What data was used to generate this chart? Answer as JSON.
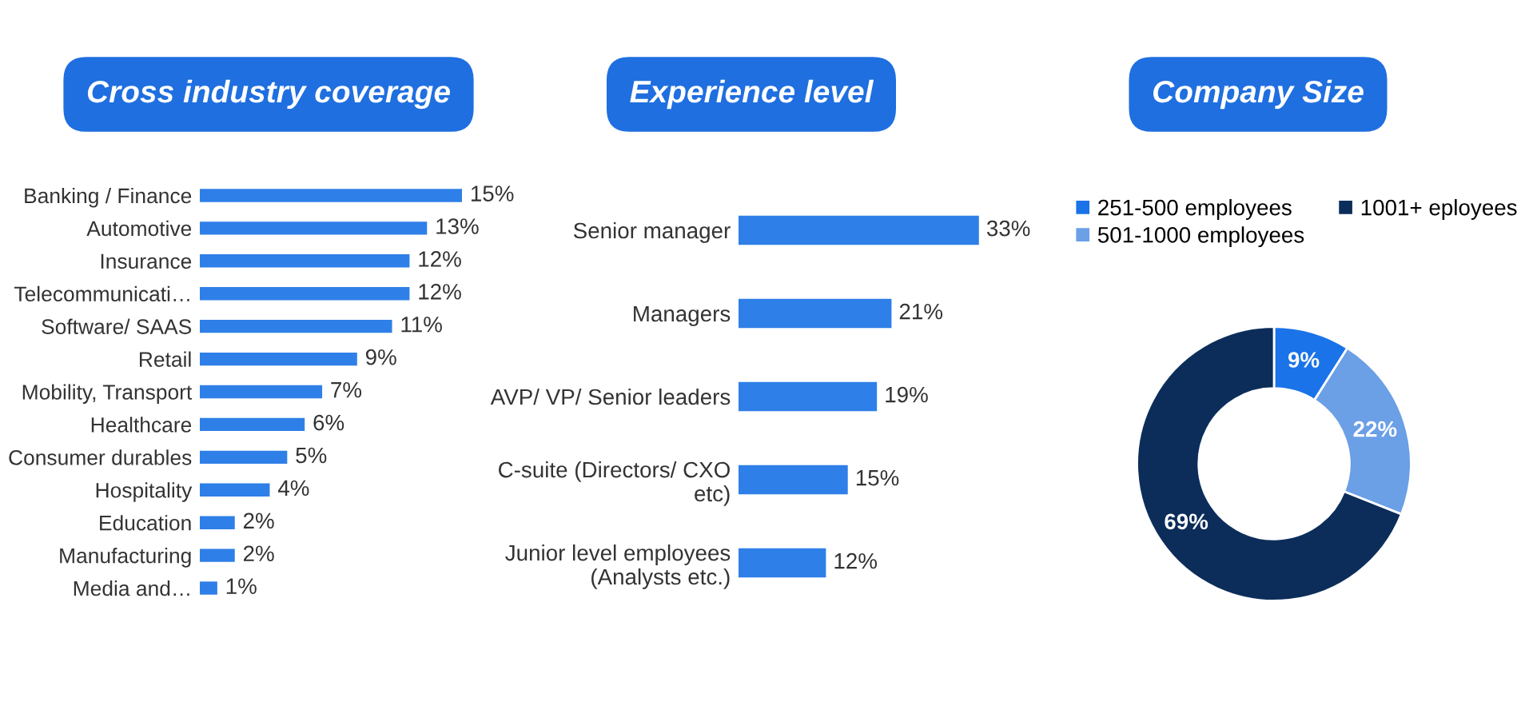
{
  "chart_data": [
    {
      "type": "bar",
      "orientation": "horizontal",
      "title": "Cross industry coverage",
      "categories": [
        "Banking / Finance",
        "Automotive",
        "Insurance",
        "Telecommunicati…",
        "Software/ SAAS",
        "Retail",
        "Mobility, Transport",
        "Healthcare",
        "Consumer durables",
        "Hospitality",
        "Education",
        "Manufacturing",
        "Media and…"
      ],
      "values": [
        15,
        13,
        12,
        12,
        11,
        9,
        7,
        6,
        5,
        4,
        2,
        2,
        1
      ],
      "value_labels": [
        "15%",
        "13%",
        "12%",
        "12%",
        "11%",
        "9%",
        "7%",
        "6%",
        "5%",
        "4%",
        "2%",
        "2%",
        "1%"
      ],
      "color": "#2f7fe8"
    },
    {
      "type": "bar",
      "orientation": "horizontal",
      "title": "Experience level",
      "categories": [
        "Senior manager",
        "Managers",
        "AVP/ VP/ Senior leaders",
        "C-suite (Directors/ CXO\netc)",
        "Junior level employees\n(Analysts etc.)"
      ],
      "values": [
        33,
        21,
        19,
        15,
        12
      ],
      "value_labels": [
        "33%",
        "21%",
        "19%",
        "15%",
        "12%"
      ],
      "color": "#2f7fe8"
    },
    {
      "type": "donut",
      "title": "Company Size",
      "categories": [
        "251-500 employees",
        "501-1000 employees",
        "1001+ eployees"
      ],
      "values": [
        9,
        22,
        69
      ],
      "value_labels": [
        "9%",
        "22%",
        "69%"
      ],
      "colors": [
        "#1a73e8",
        "#6b9fe6",
        "#0c2d5a"
      ],
      "legend": "top"
    }
  ]
}
